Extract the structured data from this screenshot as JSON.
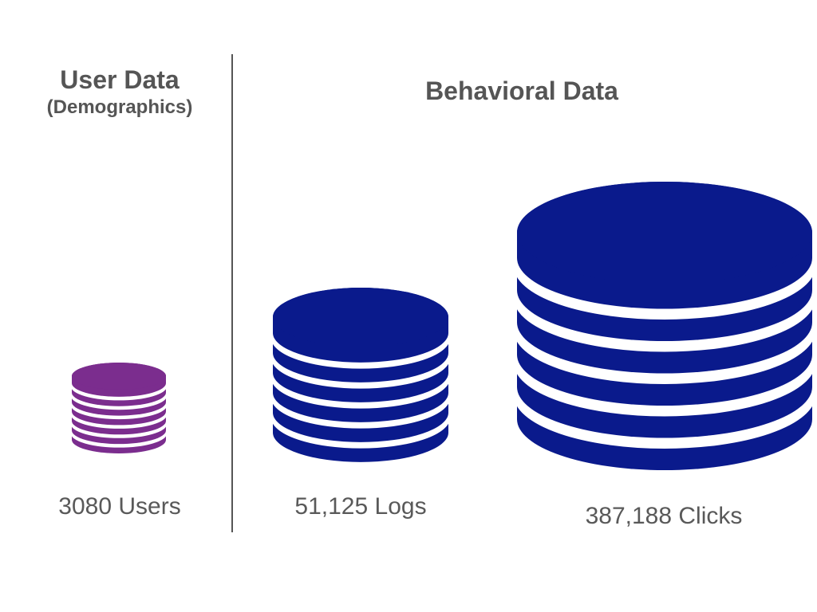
{
  "user_section": {
    "title": "User Data",
    "subtitle": "(Demographics)"
  },
  "behavioral_section": {
    "title": "Behavioral Data"
  },
  "databases": [
    {
      "caption": "3080 Users",
      "color": "#7b2d8e",
      "icon": "database-icon",
      "layers": 7
    },
    {
      "caption": "51,125 Logs",
      "color": "#0a1a8c",
      "icon": "database-icon",
      "layers": 6
    },
    {
      "caption": "387,188 Clicks",
      "color": "#0a1a8c",
      "icon": "database-icon",
      "layers": 6
    }
  ]
}
